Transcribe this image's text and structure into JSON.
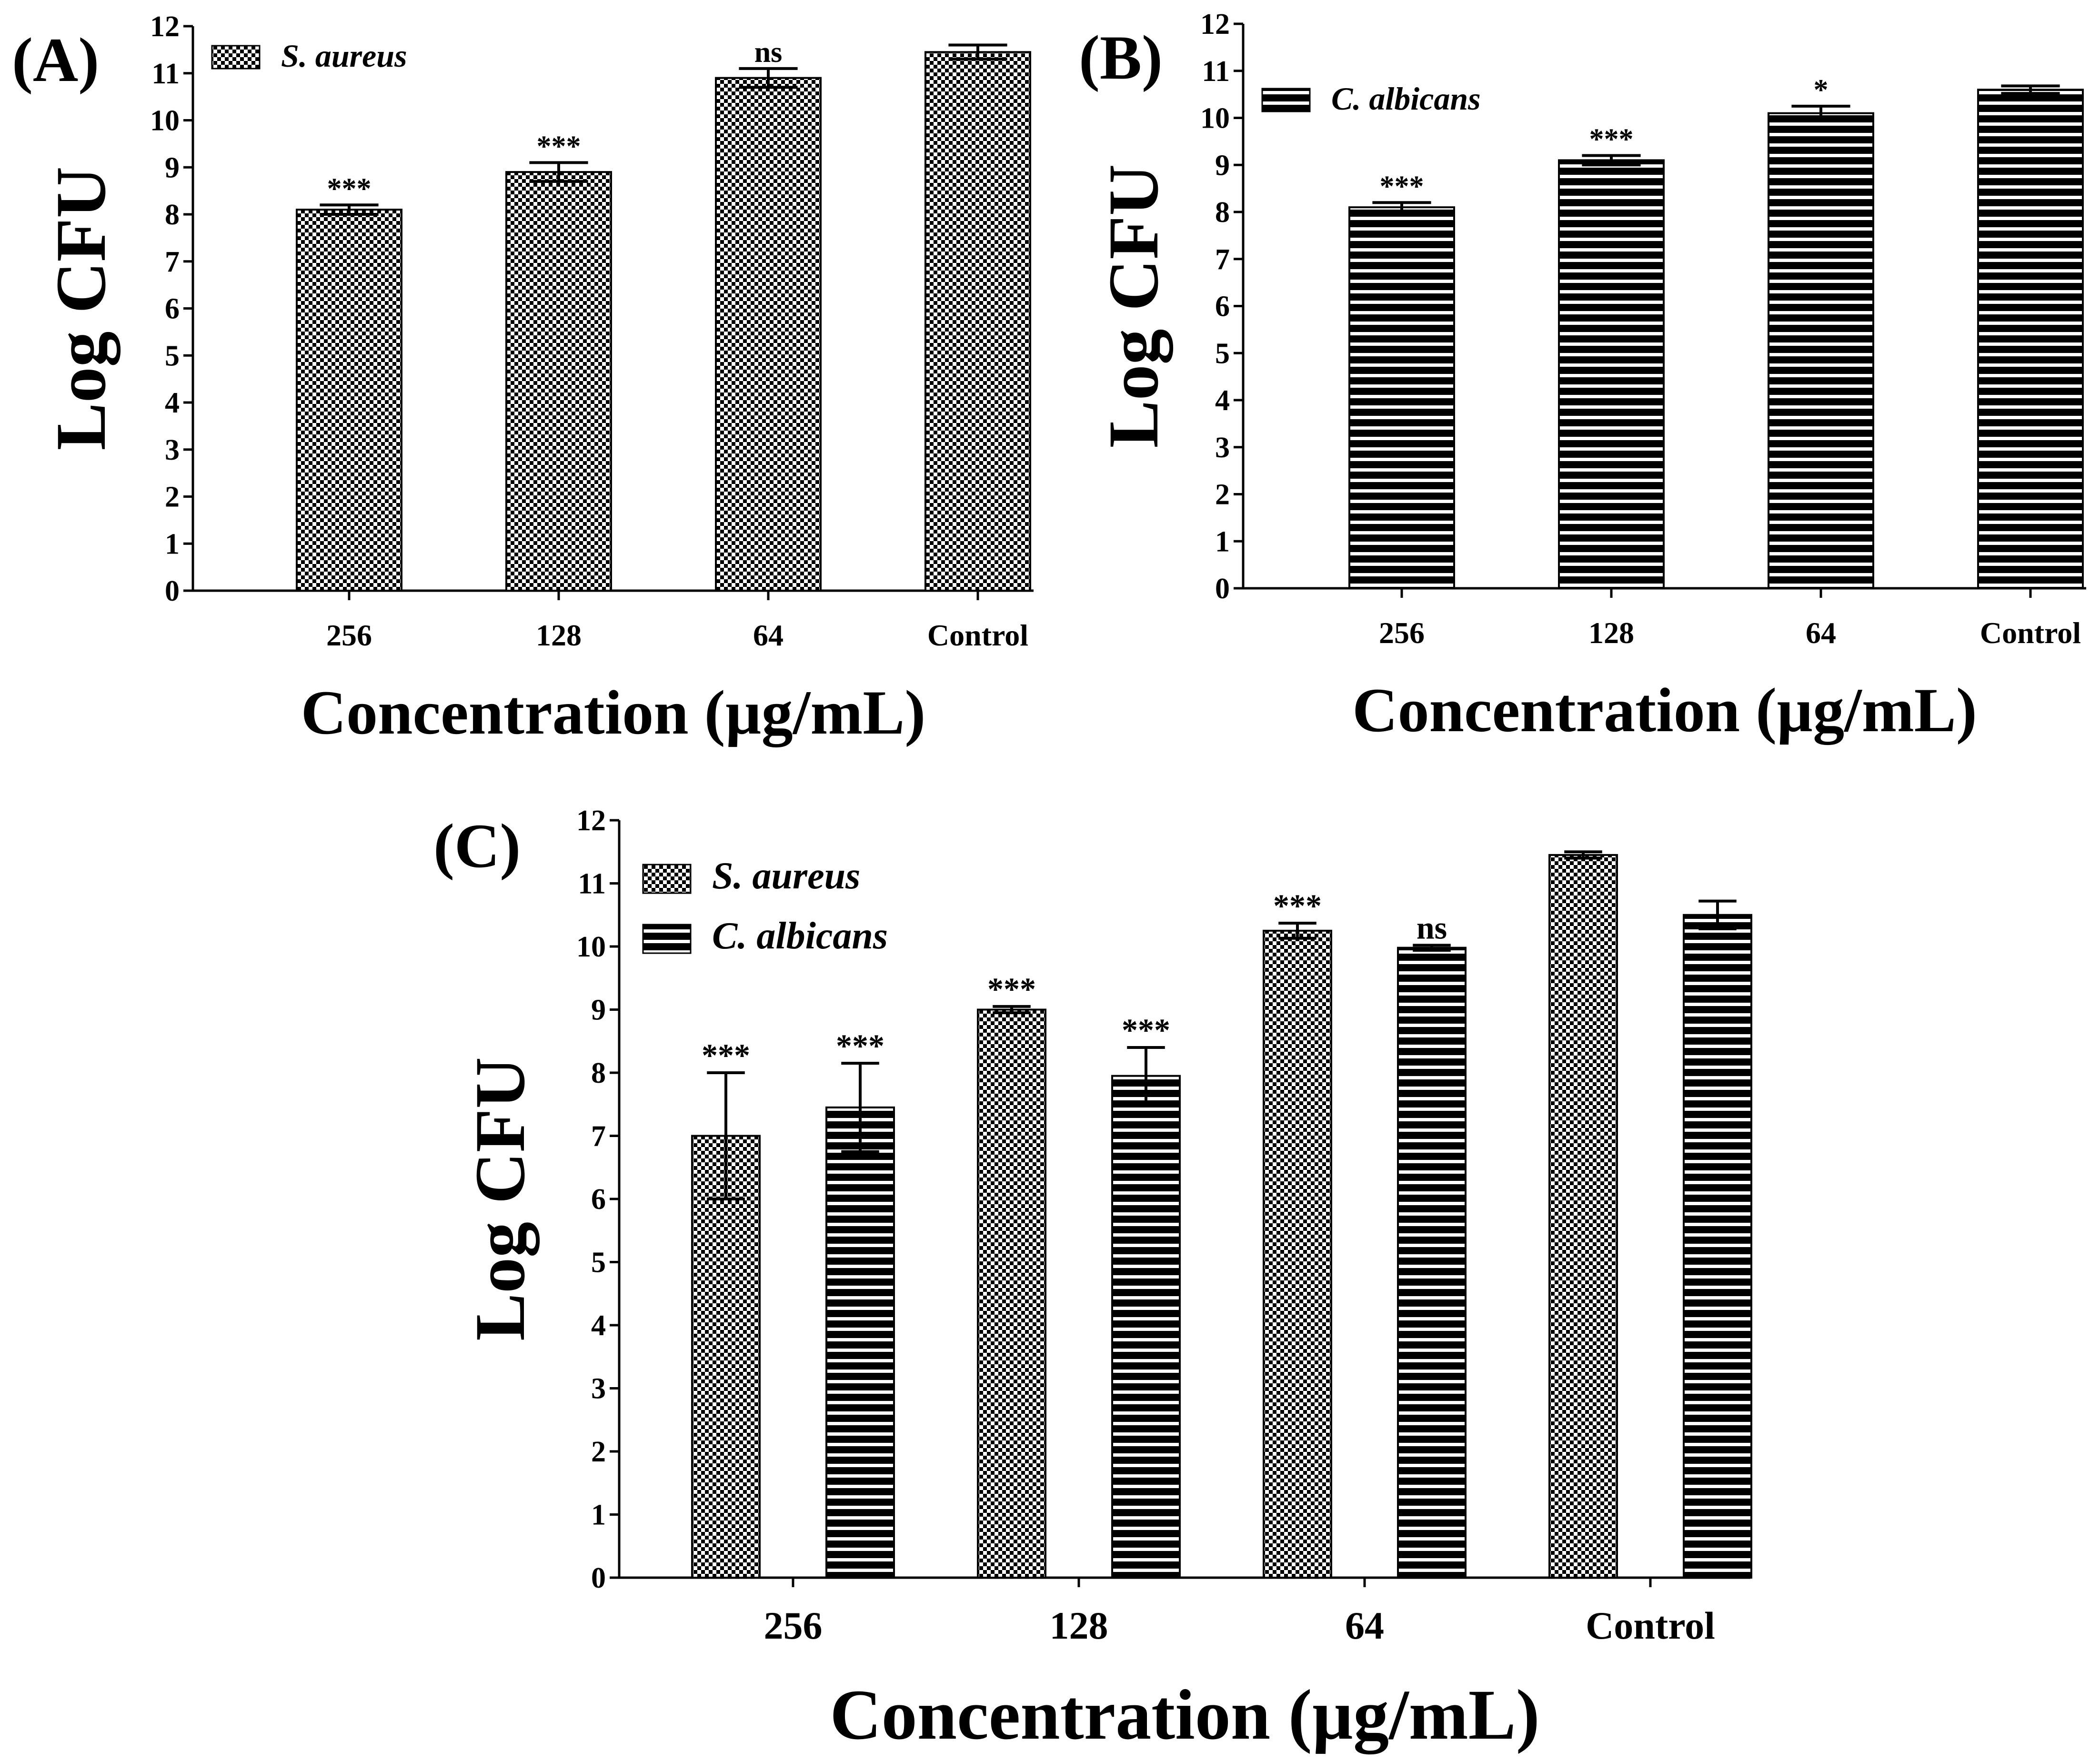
{
  "colors": {
    "ink": "#000000",
    "paper": "#ffffff"
  },
  "chart_data": [
    {
      "panel_label": "(A)",
      "type": "bar",
      "categories": [
        "256",
        "128",
        "64",
        "Control"
      ],
      "xlabel": "Concentration (µg/mL)",
      "ylabel": "Log CFU",
      "ylim": [
        0,
        12
      ],
      "yticks": [
        0,
        1,
        2,
        3,
        4,
        5,
        6,
        7,
        8,
        9,
        10,
        11,
        12
      ],
      "grid": false,
      "legend_position": "top-left",
      "series": [
        {
          "name": "S. aureus",
          "pattern": "checker",
          "values": [
            8.1,
            8.9,
            10.9,
            11.45
          ],
          "errors": [
            0.1,
            0.2,
            0.2,
            0.15
          ],
          "annotations": [
            "***",
            "***",
            "ns",
            ""
          ]
        }
      ]
    },
    {
      "panel_label": "(B)",
      "type": "bar",
      "categories": [
        "256",
        "128",
        "64",
        "Control"
      ],
      "xlabel": "Concentration (µg/mL)",
      "ylabel": "Log CFU",
      "ylim": [
        0,
        12
      ],
      "yticks": [
        0,
        1,
        2,
        3,
        4,
        5,
        6,
        7,
        8,
        9,
        10,
        11,
        12
      ],
      "grid": false,
      "legend_position": "top-left",
      "series": [
        {
          "name": "C. albicans",
          "pattern": "stripes",
          "values": [
            8.1,
            9.1,
            10.1,
            10.6
          ],
          "errors": [
            0.1,
            0.1,
            0.15,
            0.08
          ],
          "annotations": [
            "***",
            "***",
            "*",
            ""
          ]
        }
      ]
    },
    {
      "panel_label": "(C)",
      "type": "bar",
      "categories": [
        "256",
        "128",
        "64",
        "Control"
      ],
      "xlabel": "Concentration (µg/mL)",
      "ylabel": "Log CFU",
      "ylim": [
        0,
        12
      ],
      "yticks": [
        0,
        1,
        2,
        3,
        4,
        5,
        6,
        7,
        8,
        9,
        10,
        11,
        12
      ],
      "grid": false,
      "legend_position": "top-left",
      "series": [
        {
          "name": "S. aureus",
          "pattern": "checker",
          "values": [
            7.0,
            9.0,
            10.25,
            11.45
          ],
          "errors": [
            1.0,
            0.05,
            0.12,
            0.05
          ],
          "annotations": [
            "***",
            "***",
            "***",
            ""
          ]
        },
        {
          "name": "C. albicans",
          "pattern": "stripes",
          "values": [
            7.45,
            7.95,
            9.98,
            10.5
          ],
          "errors": [
            0.7,
            0.45,
            0.04,
            0.22
          ],
          "annotations": [
            "***",
            "***",
            "ns",
            ""
          ]
        }
      ]
    }
  ]
}
